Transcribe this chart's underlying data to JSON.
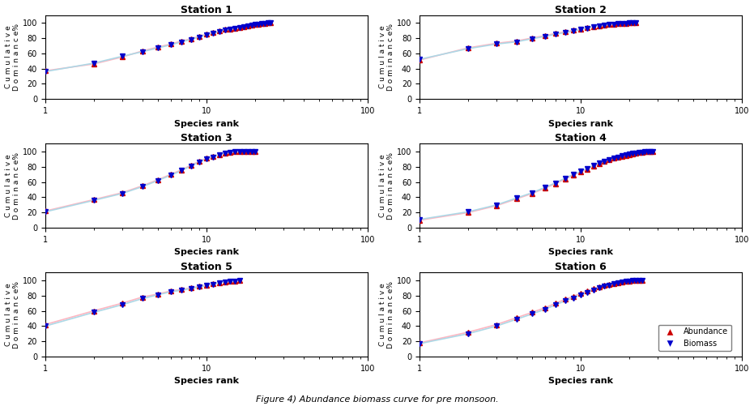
{
  "stations": [
    "Station 1",
    "Station 2",
    "Station 3",
    "Station 4",
    "Station 5",
    "Station 6"
  ],
  "title": "Figure 4) Abundance biomass curve for pre monsoon.",
  "xlabel": "Species rank",
  "ylabel_line1": "Cumulative",
  "ylabel_line2": "Dominance%",
  "abundance_color": "#CC0000",
  "biomass_color": "#0000CC",
  "line_color_abundance": "#FFB6C1",
  "line_color_biomass": "#ADD8E6",
  "station_data": {
    "Station 1": {
      "x": [
        1,
        2,
        3,
        4,
        5,
        6,
        7,
        8,
        9,
        10,
        11,
        12,
        13,
        14,
        15,
        16,
        17,
        18,
        19,
        20,
        21,
        22,
        23,
        24,
        25
      ],
      "abundance": [
        37,
        46,
        55,
        63,
        68,
        72,
        76,
        79,
        82,
        85,
        87,
        89,
        91,
        92,
        93,
        94,
        95,
        96,
        97,
        98,
        98,
        99,
        99,
        100,
        100
      ],
      "biomass": [
        36,
        47,
        56,
        62,
        67,
        71,
        75,
        78,
        81,
        84,
        86,
        88,
        90,
        91,
        93,
        94,
        95,
        96,
        97,
        98,
        98,
        99,
        99,
        100,
        100
      ]
    },
    "Station 2": {
      "x": [
        1,
        2,
        3,
        4,
        5,
        6,
        7,
        8,
        9,
        10,
        11,
        12,
        13,
        14,
        15,
        16,
        17,
        18,
        19,
        20,
        21,
        22
      ],
      "abundance": [
        51,
        67,
        73,
        76,
        80,
        83,
        86,
        88,
        90,
        92,
        94,
        95,
        96,
        97,
        98,
        98,
        99,
        99,
        99,
        100,
        100,
        100
      ],
      "biomass": [
        52,
        66,
        72,
        75,
        79,
        82,
        85,
        87,
        89,
        91,
        93,
        95,
        96,
        97,
        98,
        98,
        99,
        99,
        99,
        100,
        100,
        100
      ]
    },
    "Station 3": {
      "x": [
        1,
        2,
        3,
        4,
        5,
        6,
        7,
        8,
        9,
        10,
        11,
        12,
        13,
        14,
        15,
        16,
        17,
        18,
        19,
        20
      ],
      "abundance": [
        22,
        37,
        46,
        55,
        63,
        70,
        76,
        82,
        87,
        91,
        94,
        96,
        98,
        99,
        100,
        100,
        100,
        100,
        100,
        100
      ],
      "biomass": [
        21,
        36,
        45,
        54,
        62,
        69,
        75,
        81,
        86,
        90,
        93,
        96,
        98,
        99,
        100,
        100,
        100,
        100,
        100,
        100
      ]
    },
    "Station 4": {
      "x": [
        1,
        2,
        3,
        4,
        5,
        6,
        7,
        8,
        9,
        10,
        11,
        12,
        13,
        14,
        15,
        16,
        17,
        18,
        19,
        20,
        21,
        22,
        23,
        24,
        25,
        26,
        27,
        28
      ],
      "abundance": [
        10,
        20,
        29,
        38,
        45,
        52,
        58,
        64,
        69,
        73,
        77,
        81,
        84,
        87,
        89,
        91,
        93,
        94,
        95,
        96,
        97,
        98,
        99,
        99,
        100,
        100,
        100,
        100
      ],
      "biomass": [
        11,
        21,
        30,
        39,
        46,
        53,
        59,
        65,
        70,
        74,
        78,
        82,
        85,
        87,
        89,
        91,
        93,
        95,
        96,
        97,
        98,
        98,
        99,
        99,
        100,
        100,
        100,
        100
      ]
    },
    "Station 5": {
      "x": [
        1,
        2,
        3,
        4,
        5,
        6,
        7,
        8,
        9,
        10,
        11,
        12,
        13,
        14,
        15,
        16
      ],
      "abundance": [
        42,
        60,
        70,
        78,
        82,
        86,
        88,
        90,
        92,
        94,
        96,
        97,
        98,
        99,
        99,
        100
      ],
      "biomass": [
        40,
        58,
        68,
        76,
        81,
        85,
        87,
        89,
        91,
        93,
        95,
        97,
        98,
        99,
        99,
        100
      ]
    },
    "Station 6": {
      "x": [
        1,
        2,
        3,
        4,
        5,
        6,
        7,
        8,
        9,
        10,
        11,
        12,
        13,
        14,
        15,
        16,
        17,
        18,
        19,
        20,
        21,
        22,
        23,
        24
      ],
      "abundance": [
        18,
        32,
        42,
        51,
        58,
        64,
        70,
        75,
        79,
        83,
        86,
        89,
        91,
        93,
        95,
        96,
        97,
        98,
        99,
        99,
        100,
        100,
        100,
        100
      ],
      "biomass": [
        17,
        30,
        40,
        49,
        56,
        62,
        68,
        73,
        77,
        81,
        84,
        87,
        90,
        92,
        94,
        96,
        97,
        98,
        99,
        99,
        100,
        100,
        100,
        100
      ]
    }
  },
  "yticks": [
    0,
    20,
    40,
    60,
    80,
    100
  ],
  "ylim": [
    0,
    110
  ],
  "xlim": [
    1,
    100
  ]
}
